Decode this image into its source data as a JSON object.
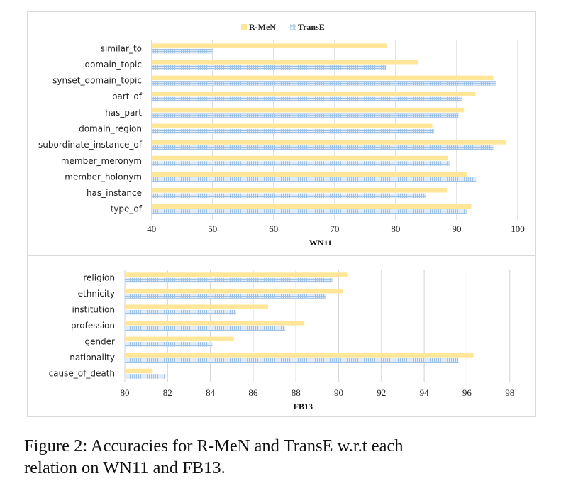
{
  "colors": {
    "rmen": "#ffe699",
    "transe": "#bdd7ee",
    "grid": "#d9d9d9"
  },
  "legend": {
    "items": [
      {
        "label": "R-MeN",
        "series": "rmen"
      },
      {
        "label": "TransE",
        "series": "transe"
      }
    ]
  },
  "chart_data": [
    {
      "type": "bar",
      "orientation": "horizontal",
      "title": "",
      "xlabel": "WN11",
      "ylabel": "",
      "xlim": [
        40,
        100
      ],
      "xticks": [
        40,
        50,
        60,
        70,
        80,
        90,
        100
      ],
      "xtick_labels": [
        "40",
        "50",
        "60",
        "70",
        "80",
        "90",
        "100"
      ],
      "grid": true,
      "legend_position": "top",
      "categories": [
        "similar_to",
        "domain_topic",
        "synset_domain_topic",
        "part_of",
        "has_part",
        "domain_region",
        "subordinate_instance_of",
        "member_meronym",
        "member_holonym",
        "has_instance",
        "type_of"
      ],
      "series": [
        {
          "name": "R-MeN",
          "values": [
            78.6,
            83.7,
            96.0,
            93.1,
            91.2,
            86.0,
            98.1,
            88.5,
            91.7,
            88.4,
            92.4
          ]
        },
        {
          "name": "TransE",
          "values": [
            50.0,
            78.4,
            96.4,
            90.8,
            90.3,
            86.3,
            96.0,
            88.8,
            93.2,
            85.0,
            91.6
          ]
        }
      ]
    },
    {
      "type": "bar",
      "orientation": "horizontal",
      "title": "",
      "xlabel": "FB13",
      "ylabel": "",
      "xlim": [
        80,
        98
      ],
      "xticks": [
        80,
        82,
        84,
        86,
        88,
        90,
        92,
        94,
        96,
        98
      ],
      "xtick_labels": [
        "80",
        "82",
        "84",
        "86",
        "88",
        "90",
        "92",
        "94",
        "96",
        "98"
      ],
      "grid": true,
      "categories": [
        "religion",
        "ethnicity",
        "institution",
        "profession",
        "gender",
        "nationality",
        "cause_of_death"
      ],
      "series": [
        {
          "name": "R-MeN",
          "values": [
            90.4,
            90.2,
            86.7,
            88.4,
            85.1,
            96.3,
            81.3
          ]
        },
        {
          "name": "TransE",
          "values": [
            89.7,
            89.4,
            85.2,
            87.5,
            84.1,
            95.6,
            81.9
          ]
        }
      ]
    }
  ],
  "caption": {
    "line1": "Figure 2: Accuracies for R-MeN and TransE w.r.t each",
    "line2": "relation on WN11 and FB13."
  }
}
